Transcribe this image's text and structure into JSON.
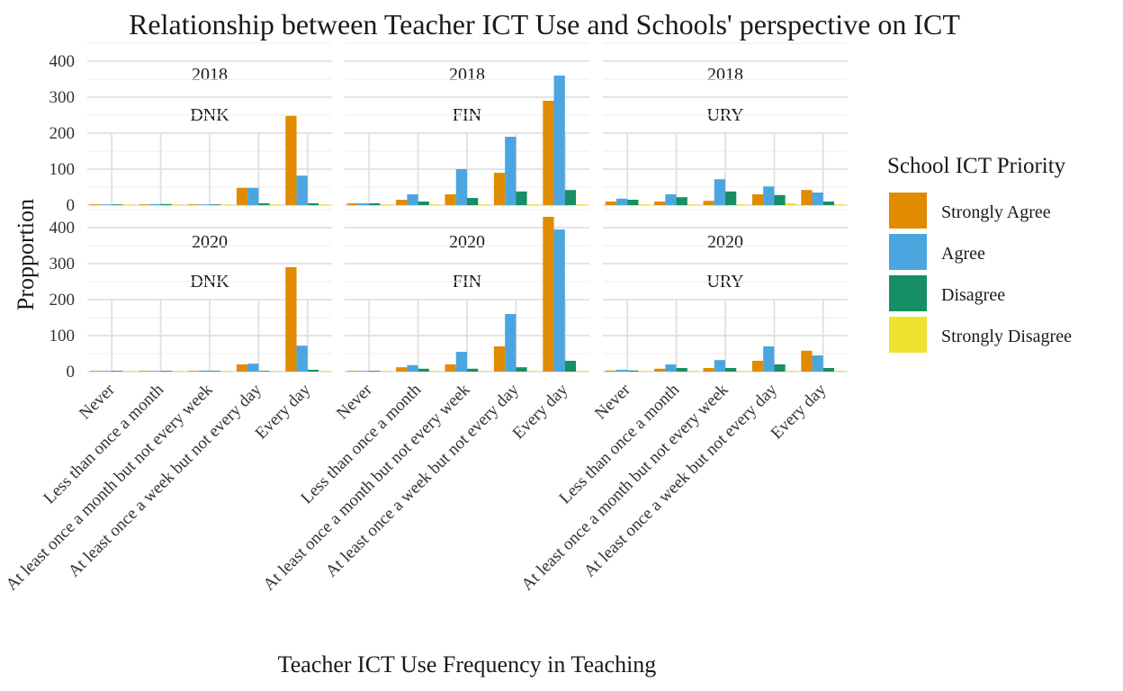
{
  "chart_data": {
    "type": "bar",
    "title": "Relationship between Teacher ICT Use and Schools' perspective on ICT",
    "xlabel": "Teacher ICT Use Frequency in Teaching",
    "ylabel": "Propportion",
    "ylim": [
      0,
      460
    ],
    "yticks": [
      0,
      100,
      200,
      300,
      400
    ],
    "grid": true,
    "legend_title": "School ICT Priority",
    "legend_position": "right",
    "categories": [
      "Never",
      "Less than once a month",
      "At least once a month but not every week",
      "At least once a week but not every day",
      "Every day"
    ],
    "series_names": [
      "Strongly Agree",
      "Agree",
      "Disagree",
      "Strongly Disagree"
    ],
    "colors": [
      "#E08B00",
      "#4BA6E0",
      "#158F63",
      "#F0E130"
    ],
    "panels": [
      {
        "year": "2018",
        "country": "DNK",
        "values": [
          [
            0,
            0,
            0,
            0
          ],
          [
            0,
            3,
            3,
            0
          ],
          [
            2,
            2,
            2,
            0
          ],
          [
            48,
            48,
            5,
            0
          ],
          [
            248,
            82,
            5,
            0
          ]
        ]
      },
      {
        "year": "2018",
        "country": "FIN",
        "values": [
          [
            5,
            5,
            5,
            0
          ],
          [
            15,
            30,
            10,
            0
          ],
          [
            30,
            100,
            20,
            0
          ],
          [
            90,
            190,
            38,
            0
          ],
          [
            290,
            360,
            42,
            0
          ]
        ]
      },
      {
        "year": "2018",
        "country": "URY",
        "values": [
          [
            10,
            18,
            15,
            0
          ],
          [
            10,
            30,
            22,
            0
          ],
          [
            12,
            72,
            38,
            0
          ],
          [
            30,
            52,
            28,
            5
          ],
          [
            42,
            35,
            10,
            0
          ]
        ]
      },
      {
        "year": "2020",
        "country": "DNK",
        "values": [
          [
            0,
            0,
            0,
            0
          ],
          [
            0,
            0,
            0,
            0
          ],
          [
            2,
            3,
            2,
            0
          ],
          [
            20,
            22,
            2,
            0
          ],
          [
            290,
            72,
            5,
            0
          ]
        ]
      },
      {
        "year": "2020",
        "country": "FIN",
        "values": [
          [
            2,
            2,
            2,
            0
          ],
          [
            12,
            18,
            8,
            0
          ],
          [
            20,
            55,
            8,
            0
          ],
          [
            70,
            160,
            12,
            0
          ],
          [
            430,
            395,
            30,
            0
          ]
        ]
      },
      {
        "year": "2020",
        "country": "URY",
        "values": [
          [
            3,
            5,
            3,
            0
          ],
          [
            8,
            20,
            10,
            0
          ],
          [
            10,
            32,
            10,
            0
          ],
          [
            30,
            70,
            20,
            0
          ],
          [
            58,
            45,
            10,
            0
          ]
        ]
      }
    ]
  }
}
